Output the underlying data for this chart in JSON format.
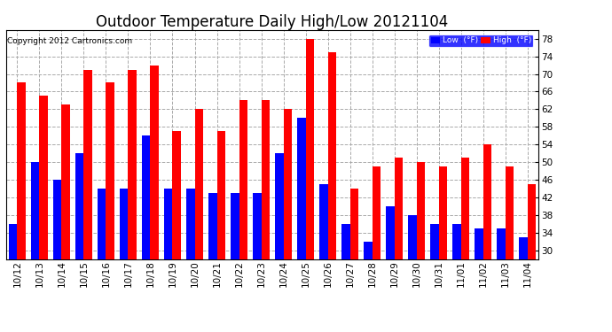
{
  "title": "Outdoor Temperature Daily High/Low 20121104",
  "copyright": "Copyright 2012 Cartronics.com",
  "ylim": [
    28,
    80
  ],
  "yticks": [
    30.0,
    34.0,
    38.0,
    42.0,
    46.0,
    50.0,
    54.0,
    58.0,
    62.0,
    66.0,
    70.0,
    74.0,
    78.0
  ],
  "categories": [
    "10/12",
    "10/13",
    "10/14",
    "10/15",
    "10/16",
    "10/17",
    "10/18",
    "10/19",
    "10/20",
    "10/21",
    "10/22",
    "10/23",
    "10/24",
    "10/25",
    "10/26",
    "10/27",
    "10/28",
    "10/29",
    "10/30",
    "10/31",
    "11/01",
    "11/02",
    "11/03",
    "11/04"
  ],
  "high": [
    68,
    65,
    63,
    71,
    68,
    71,
    72,
    57,
    62,
    57,
    64,
    64,
    62,
    78,
    75,
    44,
    49,
    51,
    50,
    49,
    51,
    54,
    49,
    45
  ],
  "low": [
    36,
    50,
    46,
    52,
    44,
    44,
    56,
    44,
    44,
    43,
    43,
    43,
    52,
    60,
    45,
    36,
    32,
    40,
    38,
    36,
    36,
    35,
    35,
    33
  ],
  "high_color": "#FF0000",
  "low_color": "#0000FF",
  "background_color": "#FFFFFF",
  "plot_background": "#FFFFFF",
  "grid_color": "#AAAAAA",
  "title_fontsize": 12,
  "tick_fontsize": 7.5,
  "bar_width": 0.38
}
